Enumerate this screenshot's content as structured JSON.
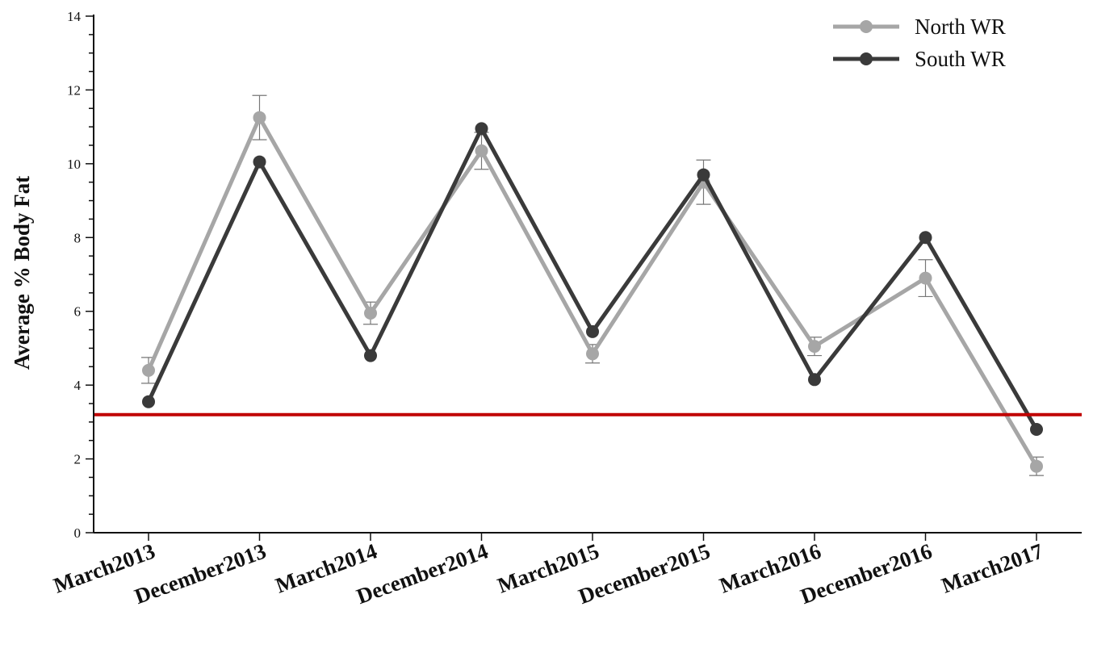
{
  "chart_data": {
    "type": "line",
    "title": "",
    "xlabel": "",
    "ylabel": "Average % Body Fat",
    "ylim": [
      0,
      14
    ],
    "yticks": [
      0,
      2,
      4,
      6,
      8,
      10,
      12,
      14
    ],
    "grid": false,
    "legend_position": "top-right",
    "categories": [
      "March2013",
      "December2013",
      "March2014",
      "December2014",
      "March2015",
      "December2015",
      "March2016",
      "December2016",
      "March2017"
    ],
    "series": [
      {
        "name": "North WR",
        "color": "#a6a6a6",
        "values": [
          4.4,
          11.25,
          5.95,
          10.35,
          4.85,
          9.5,
          5.05,
          6.9,
          1.8
        ],
        "error": [
          0.35,
          0.6,
          0.3,
          0.5,
          0.25,
          0.6,
          0.25,
          0.5,
          0.25
        ]
      },
      {
        "name": "South WR",
        "color": "#3a3a3a",
        "values": [
          3.55,
          10.05,
          4.8,
          10.95,
          5.45,
          9.7,
          4.15,
          8.0,
          2.8
        ]
      }
    ],
    "reference_line": {
      "y": 3.2,
      "color": "#c00000"
    }
  }
}
